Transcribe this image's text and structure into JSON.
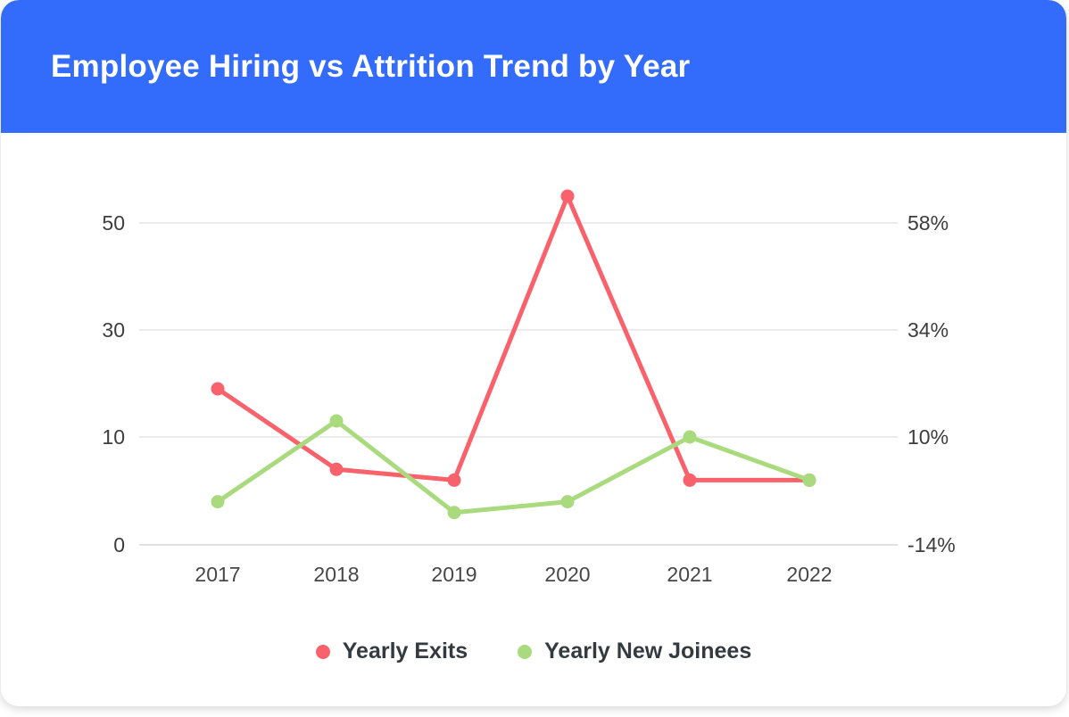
{
  "header": {
    "title": "Employee Hiring vs Attrition Trend by Year",
    "background_color": "#336CFA",
    "title_color": "#ffffff"
  },
  "chart_data": {
    "type": "line",
    "title": "Employee Hiring vs Attrition Trend by Year",
    "categories": [
      "2017",
      "2018",
      "2019",
      "2020",
      "2021",
      "2022"
    ],
    "series": [
      {
        "name": "Yearly Exits",
        "color": "#F9616B",
        "values": [
          19,
          7,
          6,
          55,
          6,
          6
        ]
      },
      {
        "name": "Yearly New Joinees",
        "color": "#A9DB7E",
        "values": [
          4,
          13,
          3,
          4,
          10,
          6
        ]
      }
    ],
    "left_axis": {
      "ticks": [
        "0",
        "10",
        "30",
        "50"
      ]
    },
    "right_axis": {
      "ticks": [
        "-14%",
        "10%",
        "34%",
        "58%"
      ]
    },
    "grid": true,
    "legend_position": "bottom",
    "marker": "circle"
  }
}
